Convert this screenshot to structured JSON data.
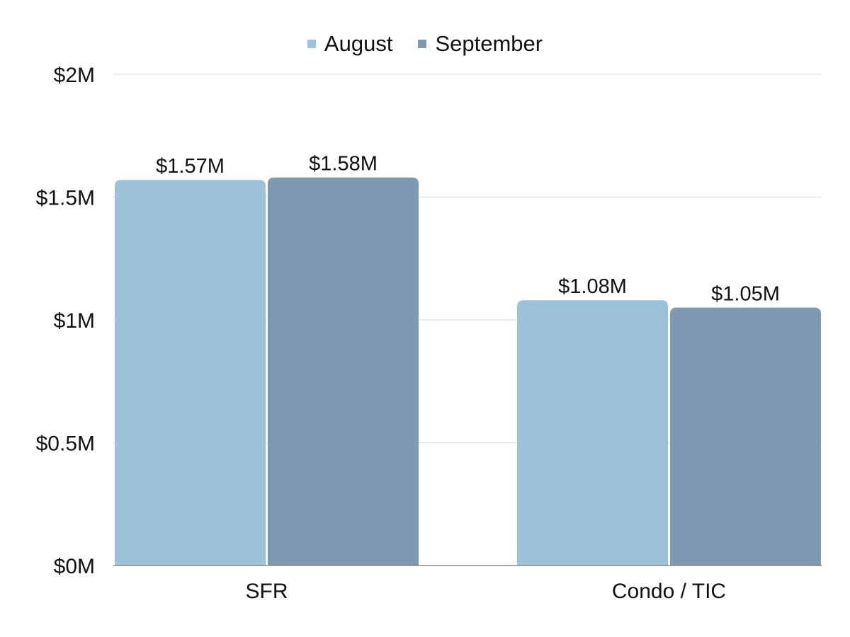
{
  "chart_data": {
    "type": "bar",
    "categories": [
      "SFR",
      "Condo / TIC"
    ],
    "series": [
      {
        "name": "August",
        "values": [
          1.57,
          1.08
        ],
        "labels": [
          "$1.57M",
          "$1.08M"
        ],
        "color": "#9BC2D7"
      },
      {
        "name": "September",
        "values": [
          1.58,
          1.05
        ],
        "labels": [
          "$1.58M",
          "$1.05M"
        ],
        "color": "#7F98B3"
      }
    ],
    "yticks": [
      {
        "value": 0,
        "label": "$0M"
      },
      {
        "value": 0.5,
        "label": "$0.5M"
      },
      {
        "value": 1,
        "label": "$1M"
      },
      {
        "value": 1.5,
        "label": "$1.5M"
      },
      {
        "value": 2,
        "label": "$2M"
      }
    ],
    "ylim": [
      0,
      2
    ],
    "unit": "$M",
    "grid": true,
    "legend_position": "top-center"
  }
}
